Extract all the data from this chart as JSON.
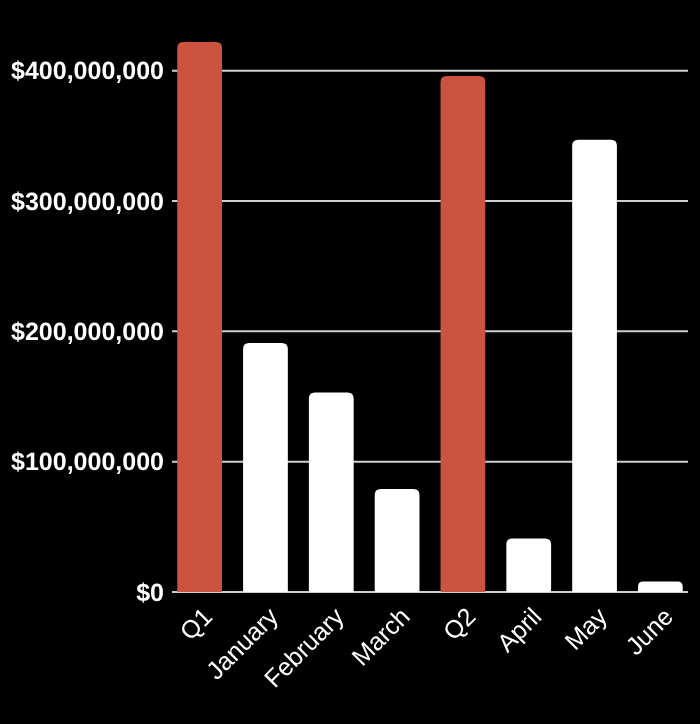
{
  "chart_data": {
    "type": "bar",
    "categories": [
      "Q1",
      "January",
      "February",
      "March",
      "Q2",
      "April",
      "May",
      "June"
    ],
    "values": [
      422000000,
      191000000,
      153000000,
      79000000,
      396000000,
      41000000,
      347000000,
      8000000
    ],
    "colors": [
      "#cc5340",
      "#ffffff",
      "#ffffff",
      "#ffffff",
      "#cc5340",
      "#ffffff",
      "#ffffff",
      "#ffffff"
    ],
    "ylim": [
      0,
      422000000
    ],
    "yticks": [
      {
        "value": 0,
        "label": "$0"
      },
      {
        "value": 100000000,
        "label": "$100,000,000"
      },
      {
        "value": 200000000,
        "label": "$200,000,000"
      },
      {
        "value": 300000000,
        "label": "$300,000,000"
      },
      {
        "value": 400000000,
        "label": "$400,000,000"
      }
    ],
    "grid": "y"
  }
}
